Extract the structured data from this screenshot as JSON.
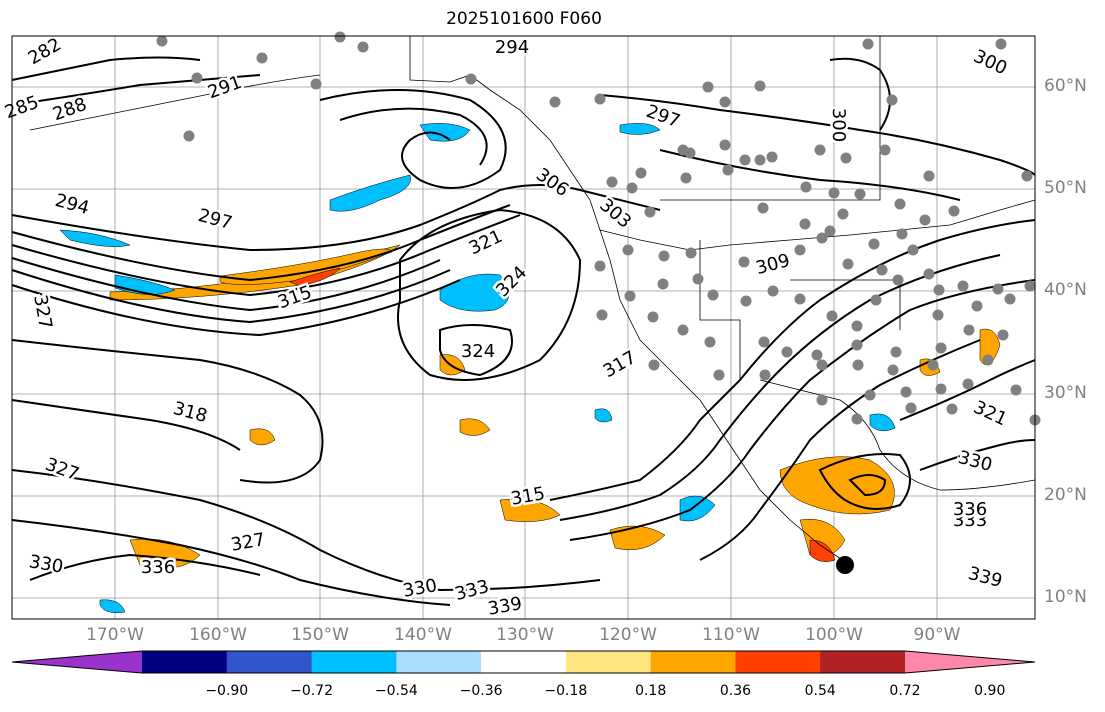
{
  "title": "2025101600 F060",
  "lat_labels": [
    "60°N",
    "50°N",
    "40°N",
    "30°N",
    "20°N",
    "10°N"
  ],
  "lon_labels": [
    "170°W",
    "160°W",
    "150°W",
    "140°W",
    "130°W",
    "120°W",
    "110°W",
    "100°W",
    "90°W"
  ],
  "contour_labels": [
    "282",
    "285",
    "288",
    "291",
    "294",
    "294",
    "297",
    "297",
    "300",
    "300",
    "303",
    "306",
    "309",
    "315",
    "315",
    "317",
    "318",
    "321",
    "321",
    "324",
    "324",
    "327",
    "327",
    "327",
    "330",
    "330",
    "330",
    "333",
    "333",
    "336",
    "336",
    "339",
    "339"
  ],
  "colorbar": {
    "tick_labels": [
      "−0.90",
      "−0.72",
      "−0.54",
      "−0.36",
      "−0.18",
      "0.18",
      "0.36",
      "0.54",
      "0.72",
      "0.90"
    ],
    "colors": [
      "#9933cc",
      "#000080",
      "#3355cc",
      "#00bfff",
      "#aaddff",
      "#ffffff",
      "#ffe680",
      "#ffa500",
      "#ff4000",
      "#b22222",
      "#ff88aa"
    ]
  },
  "colors": {
    "contour": "#000000",
    "grid": "#999999",
    "station": "#808080",
    "positive": "#ffa500",
    "negative": "#00bfff",
    "strong_positive": "#ff4000",
    "marker": "#000000"
  }
}
